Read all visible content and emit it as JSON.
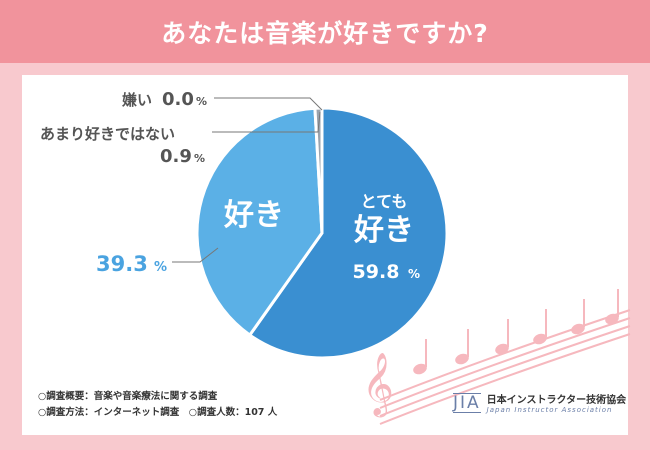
{
  "title": "あなたは音楽が好きですか?",
  "chart_data": {
    "type": "pie",
    "slices": [
      {
        "label_top": "とても",
        "label": "好き",
        "value": 59.8,
        "value_text": "59.8",
        "unit": "%",
        "color": "#3a8fd1"
      },
      {
        "label_top": "",
        "label": "好き",
        "value": 39.3,
        "value_text": "39.3",
        "unit": "%",
        "color": "#5bb0e6"
      },
      {
        "label_top": "",
        "label": "あまり好きではない",
        "value": 0.9,
        "value_text": "0.9",
        "unit": "%",
        "color": "#9aa3ad"
      },
      {
        "label_top": "",
        "label": "嫌い",
        "value": 0.0,
        "value_text": "0.0",
        "unit": "%",
        "color": "#c8c8c8"
      }
    ]
  },
  "footer": {
    "line1": "○調査概要：音楽や音楽療法に関する調査",
    "line2": "○調査方法：インターネット調査　○調査人数：107 人"
  },
  "logo": {
    "mark": "JIA",
    "name_ja": "日本インストラクター技術協会",
    "name_en": "Japan Instructor Association"
  },
  "colors": {
    "background": "#f8c9ce",
    "title_bar": "#f1939c",
    "label_gray": "#555555",
    "label_blue": "#4aa3e0"
  }
}
